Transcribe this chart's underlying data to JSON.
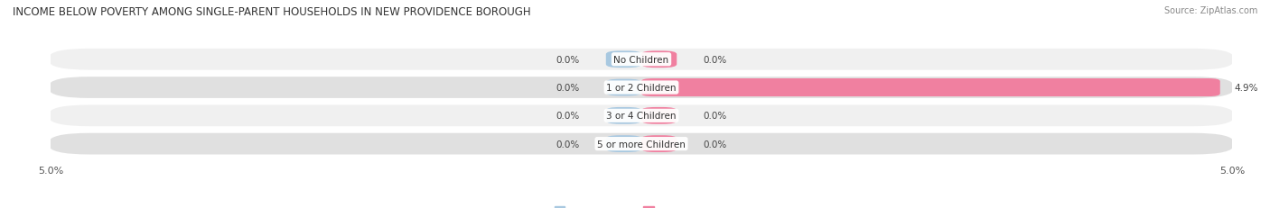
{
  "title": "INCOME BELOW POVERTY AMONG SINGLE-PARENT HOUSEHOLDS IN NEW PROVIDENCE BOROUGH",
  "source": "Source: ZipAtlas.com",
  "categories": [
    "No Children",
    "1 or 2 Children",
    "3 or 4 Children",
    "5 or more Children"
  ],
  "single_father_values": [
    0.0,
    0.0,
    0.0,
    0.0
  ],
  "single_mother_values": [
    0.0,
    4.9,
    0.0,
    0.0
  ],
  "max_value": 5.0,
  "father_color": "#a8c8e0",
  "mother_color": "#f080a0",
  "row_bg_light": "#f0f0f0",
  "row_bg_dark": "#e0e0e0",
  "title_fontsize": 8.5,
  "label_fontsize": 7.5,
  "value_fontsize": 7.5,
  "axis_fontsize": 8,
  "legend_fontsize": 8,
  "source_fontsize": 7,
  "background_color": "#ffffff"
}
